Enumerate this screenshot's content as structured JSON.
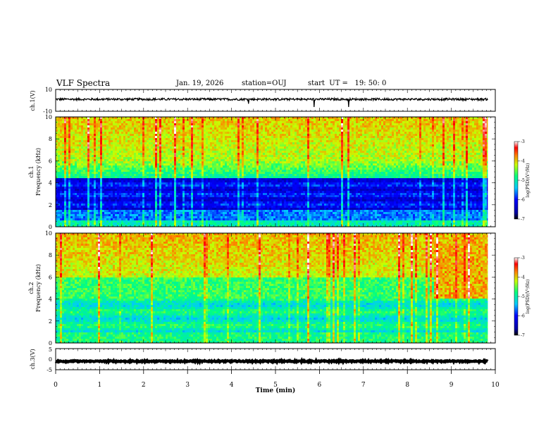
{
  "header": {
    "title": "VLF Spectra",
    "date": "Jan. 19, 2026",
    "station": "station=OUJ",
    "start": "start  UT =   19: 50: 0"
  },
  "chart_data": [
    {
      "type": "line",
      "name": "ch1-waveform",
      "ylabel": "ch.1(V)",
      "ylim": [
        -10,
        10
      ],
      "yticks": [
        "10",
        "-10"
      ],
      "xlim": [
        0,
        9.83
      ],
      "baseline": 1,
      "noise_amp": 1
    },
    {
      "type": "heatmap",
      "name": "ch1-spectrogram",
      "ylabel_line1": "ch.1",
      "ylabel_line2": "Frequency (kHz)",
      "ylim": [
        0,
        10
      ],
      "yticks": [
        "0",
        "2",
        "4",
        "6",
        "8",
        "10"
      ],
      "colorbar_label": "log(PSD)(V²/Hz)",
      "colorbar_ticks": [
        "-3",
        "-4",
        "-5",
        "-6",
        "-7"
      ],
      "clim": [
        -7,
        -3
      ]
    },
    {
      "type": "heatmap",
      "name": "ch2-spectrogram",
      "ylabel_line1": "ch.2",
      "ylabel_line2": "Frequency (kHz)",
      "ylim": [
        0,
        10
      ],
      "yticks": [
        "0",
        "2",
        "4",
        "6",
        "8",
        "10"
      ],
      "colorbar_label": "log(PSD)(V²/Hz)",
      "colorbar_ticks": [
        "-3",
        "-4",
        "-5",
        "-6",
        "-7"
      ],
      "clim": [
        -7,
        -3
      ]
    },
    {
      "type": "line",
      "name": "ch3-waveform",
      "ylabel": "ch.3(V)",
      "ylim": [
        -5,
        5
      ],
      "yticks": [
        "5",
        "0",
        "-5"
      ],
      "xlim": [
        0,
        9.83
      ],
      "baseline": -1,
      "noise_amp": 0.3
    }
  ],
  "x_axis": {
    "label": "Time  (min)",
    "xlim": [
      0,
      10
    ],
    "ticks": [
      "0",
      "1",
      "2",
      "3",
      "4",
      "5",
      "6",
      "7",
      "8",
      "9",
      "10"
    ]
  },
  "colors": {
    "axis": "#000000",
    "waveform": "#000000"
  }
}
